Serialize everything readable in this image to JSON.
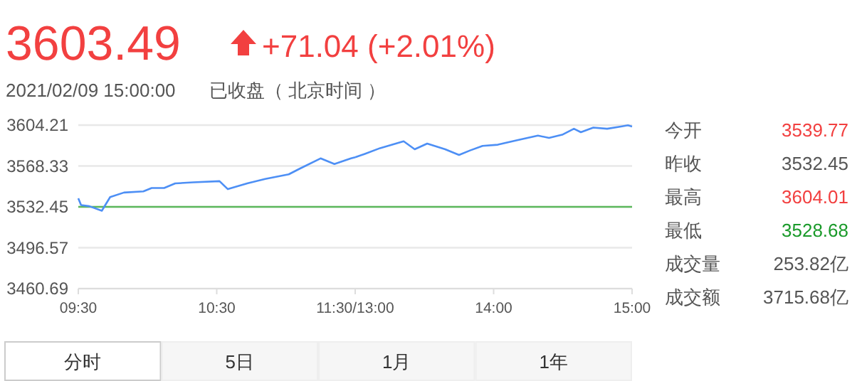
{
  "chart_data": [
    {
      "type": "line",
      "title": "3603.49",
      "subtitle": "+71.04 (+2.01%)",
      "annotations": [
        "2021/02/09 15:00:00",
        "已收盘（ 北京时间 ）",
        "今开",
        "3539.77",
        "昨收",
        "3532.45",
        "最高",
        "3604.01",
        "最低",
        "3528.68",
        "成交量",
        "253.82亿",
        "成交额",
        "3715.68亿",
        "分时",
        "5日",
        "1月",
        "1年"
      ],
      "x": [
        9.5,
        9.52,
        9.58,
        9.67,
        9.73,
        9.83,
        9.97,
        10.03,
        10.12,
        10.2,
        10.33,
        10.52,
        10.58,
        10.72,
        10.85,
        11.02,
        11.1,
        11.25,
        11.35,
        11.47,
        11.5
      ],
      "series": [
        {
          "color": "#4d8ff5",
          "values": [
            3540,
            3534,
            3533,
            3529,
            3541,
            3545,
            3546,
            3549,
            3549,
            3553,
            3554,
            3555,
            3548,
            3553,
            3557,
            3561,
            3566,
            3575,
            3570,
            3575,
            3576
          ]
        }
      ],
      "xlim": [
        9.5,
        11.5
      ],
      "xticks": [
        {
          "value": 9.5,
          "label": "09:30"
        },
        {
          "value": 10.5,
          "label": "10:30"
        },
        {
          "value": 11.5,
          "label": null
        }
      ],
      "ylim": [
        3460.69,
        3604.21
      ],
      "yticks": [
        3460.69,
        3496.57,
        3532.45,
        3568.33,
        3604.21
      ],
      "grid": "y",
      "ref_lines": [
        {
          "axis": "y",
          "value": 3532.45,
          "color": "#5cb85c"
        }
      ],
      "marker": "none",
      "line_style": "solid"
    },
    {
      "type": "line",
      "x": [
        13,
        13.07,
        13.18,
        13.35,
        13.43,
        13.52,
        13.65,
        13.75,
        13.83,
        13.92,
        14.03,
        14.17,
        14.32,
        14.4,
        14.5,
        14.58,
        14.63,
        14.72,
        14.82,
        14.92,
        14.97,
        15
      ],
      "series": [
        {
          "color": "#4d8ff5",
          "values": [
            3576,
            3579,
            3584,
            3590,
            3583,
            3588,
            3583,
            3578,
            3582,
            3586,
            3587,
            3591,
            3595,
            3593,
            3596,
            3601,
            3598,
            3602,
            3601,
            3603,
            3604,
            3603
          ]
        }
      ],
      "xlim": [
        13,
        15
      ],
      "xticks": [
        {
          "value": 13,
          "label": "11:30/13:00"
        },
        {
          "value": 14,
          "label": "14:00"
        },
        {
          "value": 15,
          "label": "15:00"
        }
      ],
      "ylim": [
        3460.69,
        3604.21
      ],
      "yticks": [
        3460.69,
        3496.57,
        3532.45,
        3568.33,
        3604.21
      ],
      "tick_labels": "x",
      "grid": "y",
      "ref_lines": [
        {
          "axis": "y",
          "value": 3532.45,
          "color": "#5cb85c"
        }
      ],
      "marker": "none",
      "line_style": "solid"
    }
  ]
}
